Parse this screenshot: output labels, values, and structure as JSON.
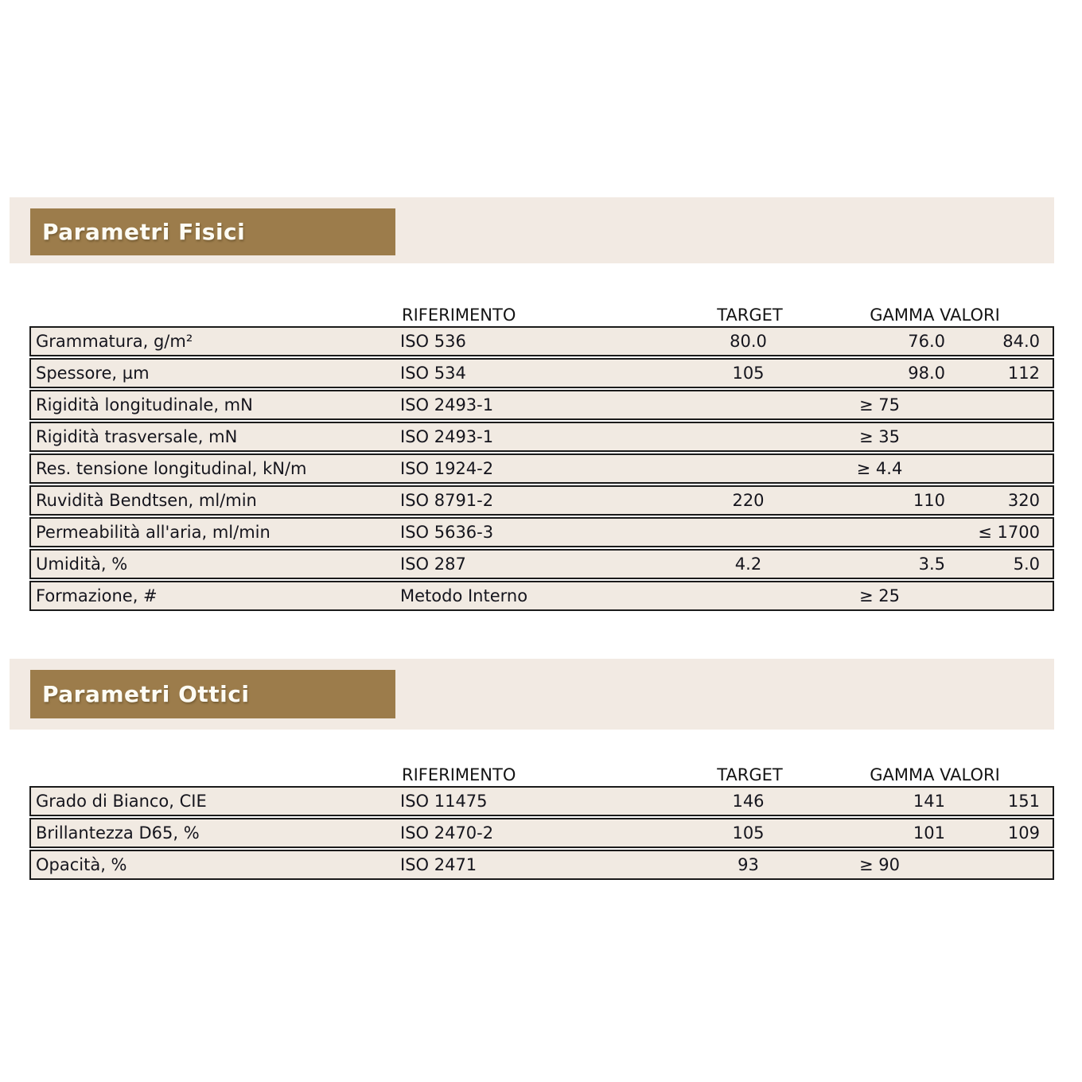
{
  "colors": {
    "header_bar_bg": "#9c7c4b",
    "panel_bg": "#f2eae3",
    "row_bg": "#f1eae2",
    "border": "#1b1b1b",
    "title_text": "#fdfcf4"
  },
  "sections": [
    {
      "title": "Parametri Fisici",
      "columns": {
        "riferimento": "RIFERIMENTO",
        "target": "TARGET",
        "gamma": "GAMMA VALORI"
      },
      "rows": [
        {
          "label": "Grammatura, g/m²",
          "riferimento": "ISO 536",
          "target": "80.0",
          "min": "76.0",
          "max": "84.0"
        },
        {
          "label": "Spessore, µm",
          "riferimento": "ISO 534",
          "target": "105",
          "min": "98.0",
          "max": "112"
        },
        {
          "label": "Rigidità longitudinale, mN",
          "riferimento": "ISO 2493-1",
          "target": "",
          "min": "≥ 75",
          "max": ""
        },
        {
          "label": "Rigidità trasversale, mN",
          "riferimento": "ISO 2493-1",
          "target": "",
          "min": "≥ 35",
          "max": ""
        },
        {
          "label": "Res. tensione longitudinal, kN/m",
          "riferimento": "ISO 1924-2",
          "target": "",
          "min": "≥ 4.4",
          "max": ""
        },
        {
          "label": "Ruvidità Bendtsen, ml/min",
          "riferimento": "ISO 8791-2",
          "target": "220",
          "min": "110",
          "max": "320"
        },
        {
          "label": "Permeabilità all'aria, ml/min",
          "riferimento": "ISO 5636-3",
          "target": "",
          "min": "",
          "max": "≤ 1700"
        },
        {
          "label": "Umidità, %",
          "riferimento": "ISO 287",
          "target": "4.2",
          "min": "3.5",
          "max": "5.0"
        },
        {
          "label": "Formazione, #",
          "riferimento": "Metodo Interno",
          "target": "",
          "min": "≥ 25",
          "max": ""
        }
      ]
    },
    {
      "title": "Parametri Ottici",
      "columns": {
        "riferimento": "RIFERIMENTO",
        "target": "TARGET",
        "gamma": "GAMMA VALORI"
      },
      "rows": [
        {
          "label": "Grado di Bianco, CIE",
          "riferimento": "ISO 11475",
          "target": "146",
          "min": "141",
          "max": "151"
        },
        {
          "label": "Brillantezza D65, %",
          "riferimento": "ISO 2470-2",
          "target": "105",
          "min": "101",
          "max": "109"
        },
        {
          "label": "Opacità, %",
          "riferimento": "ISO 2471",
          "target": "93",
          "min": "≥ 90",
          "max": ""
        }
      ]
    }
  ]
}
